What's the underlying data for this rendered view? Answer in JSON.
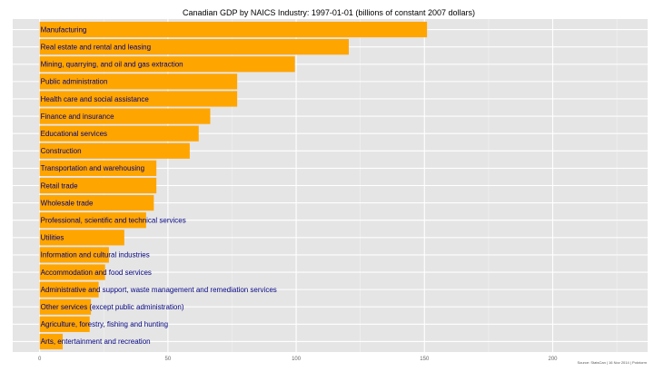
{
  "chart_data": {
    "type": "bar",
    "orientation": "horizontal",
    "title": "Canadian GDP by NAICS Industry:  1997-01-01 (billions of constant 2007 dollars)",
    "xlabel": "",
    "ylabel": "",
    "xlim": [
      -10.5,
      237
    ],
    "xticks": [
      0,
      50,
      100,
      150,
      200
    ],
    "grid": true,
    "bar_color": "#FFA500",
    "label_color": "#000080",
    "source": "Source: StatsCan | 16 Nov 2014 | Pokriorm",
    "categories": [
      "Manufacturing",
      "Real estate and rental and leasing",
      "Mining, quarrying, and oil and gas extraction",
      "Public administration",
      "Health care and social assistance",
      "Finance and insurance",
      "Educational services",
      "Construction",
      "Transportation and warehousing",
      "Retail trade",
      "Wholesale trade",
      "Professional, scientific and technical services",
      "Utilities",
      "Information and cultural industries",
      "Accommodation and food services",
      "Administrative and support, waste management and remediation services",
      "Other services (except public administration)",
      "Agriculture, forestry, fishing and hunting",
      "Arts, entertainment and recreation"
    ],
    "values": [
      151,
      120.5,
      99.5,
      77,
      77,
      66.5,
      62,
      58.5,
      45.5,
      45.5,
      44.5,
      41.5,
      33,
      27,
      25.5,
      23,
      20,
      19.5,
      9
    ]
  }
}
